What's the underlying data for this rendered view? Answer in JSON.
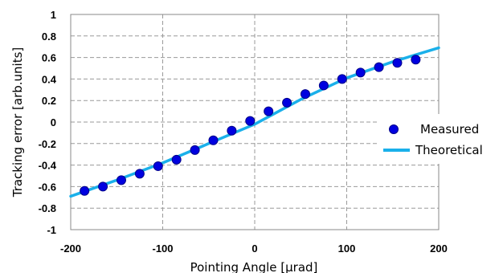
{
  "chart_data": {
    "type": "scatter",
    "title": "",
    "xlabel": "Pointing Angle [μrad]",
    "ylabel": "Tracking error [arb.units]",
    "xlim": [
      -200,
      200
    ],
    "ylim": [
      -1,
      1
    ],
    "x_ticks": [
      "-200",
      "-100",
      "0",
      "100",
      "200"
    ],
    "y_ticks": [
      "1",
      "0.8",
      "0.6",
      "0.4",
      "0.2",
      "0",
      "-0.2",
      "-0.4",
      "-0.6",
      "-0.8",
      "-1"
    ],
    "grid": true,
    "legend_position": "right",
    "series": [
      {
        "name": "Measured",
        "kind": "scatter",
        "color": "#0000e0",
        "x": [
          -185,
          -165,
          -145,
          -125,
          -105,
          -85,
          -65,
          -45,
          -25,
          -5,
          15,
          35,
          55,
          75,
          95,
          115,
          135,
          155,
          175
        ],
        "y": [
          -0.64,
          -0.6,
          -0.54,
          -0.48,
          -0.41,
          -0.35,
          -0.26,
          -0.17,
          -0.08,
          0.01,
          0.1,
          0.18,
          0.26,
          0.34,
          0.4,
          0.46,
          0.51,
          0.55,
          0.58
        ]
      },
      {
        "name": "Theoretical",
        "kind": "line",
        "color": "#1ab0ea",
        "x": [
          -200,
          -150,
          -100,
          -50,
          0,
          50,
          100,
          150,
          200
        ],
        "y": [
          -0.69,
          -0.54,
          -0.38,
          -0.2,
          -0.02,
          0.21,
          0.41,
          0.56,
          0.69
        ]
      }
    ]
  }
}
